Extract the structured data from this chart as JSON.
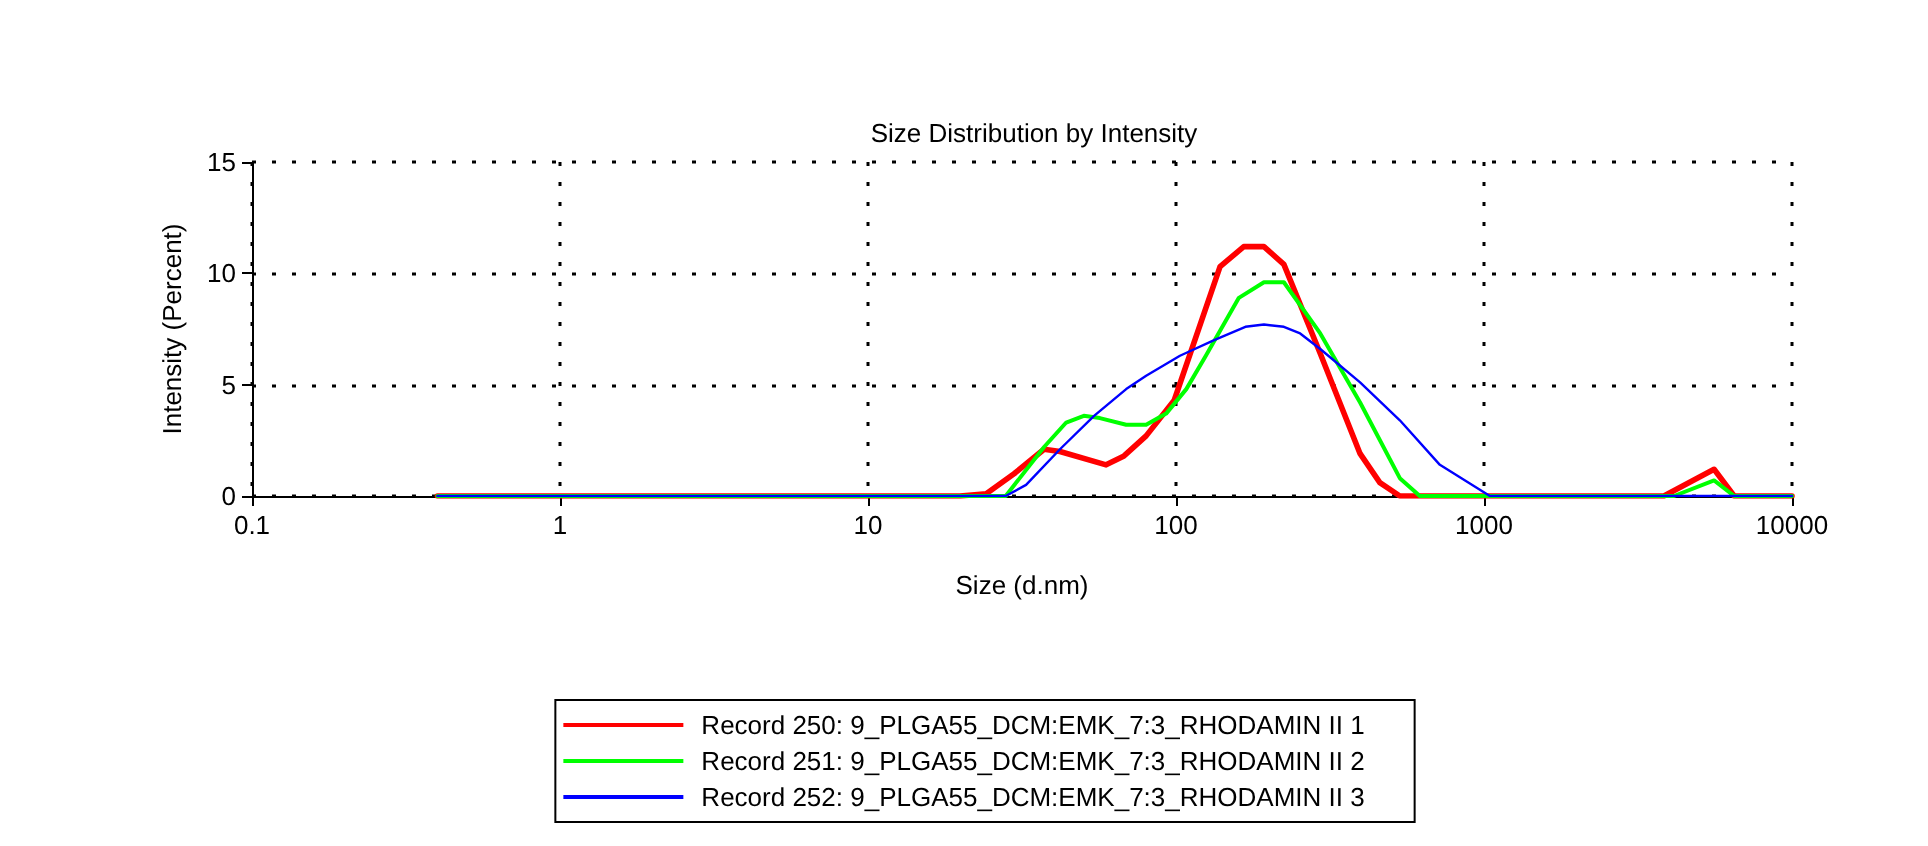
{
  "chart_data": {
    "type": "line",
    "title": "Size Distribution by Intensity",
    "xlabel": "Size (d.nm)",
    "ylabel": "Intensity (Percent)",
    "log": "x",
    "xlim": [
      0.1,
      10000
    ],
    "xticks": [
      0.1,
      1,
      10,
      100,
      1000,
      10000
    ],
    "ylim": [
      0,
      15
    ],
    "yticks": [
      0,
      5,
      10,
      15
    ],
    "grid": true,
    "line_style": "solid",
    "marker": "none",
    "legend": "bottom",
    "series": [
      {
        "name": "Record 250: 9_PLGA55_DCM:EMK_7:3_RHODAMIN II 1",
        "color": "#ff0000",
        "x": [
          0.4,
          19.9,
          24.2,
          29.8,
          37.3,
          42,
          59.3,
          67.8,
          80,
          98.7,
          139,
          166,
          193,
          224,
          294,
          396,
          459,
          533,
          3837,
          5585,
          6490,
          10000
        ],
        "values": [
          0,
          0,
          0.1,
          1.0,
          2.1,
          2.0,
          1.4,
          1.8,
          2.7,
          4.3,
          10.3,
          11.2,
          11.2,
          10.4,
          6.4,
          1.9,
          0.6,
          0,
          0,
          1.2,
          0,
          0
        ]
      },
      {
        "name": "Record 251: 9_PLGA55_DCM:EMK_7:3_RHODAMIN II 2",
        "color": "#00ff00",
        "x": [
          0.4,
          28,
          37.3,
          44,
          50.2,
          56.6,
          68.9,
          80,
          92.9,
          108,
          125,
          160,
          193,
          224,
          294,
          396,
          533,
          619,
          4140,
          5585,
          6490,
          10000
        ],
        "values": [
          0,
          0,
          2.2,
          3.3,
          3.6,
          3.5,
          3.2,
          3.2,
          3.7,
          4.8,
          6.3,
          8.9,
          9.6,
          9.6,
          7.3,
          4.2,
          0.8,
          0,
          0,
          0.7,
          0,
          0
        ]
      },
      {
        "name": "Record 252: 9_PLGA55_DCM:EMK_7:3_RHODAMIN II 3",
        "color": "#0000ff",
        "x": [
          0.4,
          28,
          32.6,
          42,
          54.2,
          68.9,
          80,
          103,
          133,
          168,
          193,
          224,
          253,
          294,
          396,
          533,
          719,
          1045,
          10000
        ],
        "values": [
          0,
          0,
          0.5,
          2.1,
          3.6,
          4.8,
          5.4,
          6.3,
          7.0,
          7.6,
          7.7,
          7.6,
          7.3,
          6.6,
          5.1,
          3.4,
          1.4,
          0,
          0
        ]
      }
    ]
  }
}
